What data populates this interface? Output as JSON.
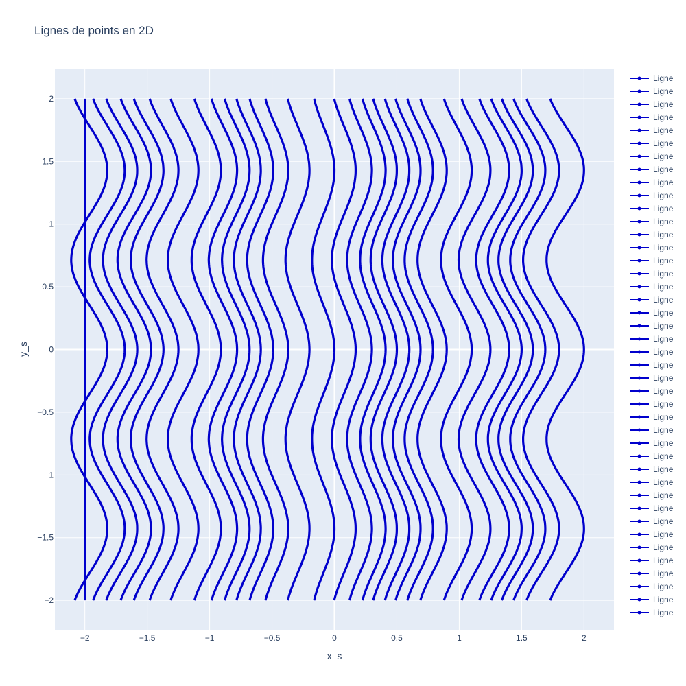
{
  "chart_data": {
    "type": "line",
    "title": "Lignes de points en 2D",
    "xlabel": "x_s",
    "ylabel": "y_s",
    "xlim": [
      -2.24,
      2.24
    ],
    "ylim": [
      -2.24,
      2.24
    ],
    "x_ticks": [
      -2,
      -1.5,
      -1,
      -0.5,
      0,
      0.5,
      1,
      1.5,
      2
    ],
    "x_tick_labels": [
      "−2",
      "−1.5",
      "−1",
      "−0.5",
      "0",
      "0.5",
      "1",
      "1.5",
      "2"
    ],
    "y_ticks": [
      -2,
      -1.5,
      -1,
      -0.5,
      0,
      0.5,
      1,
      1.5,
      2
    ],
    "y_tick_labels": [
      "−2",
      "−1.5",
      "−1",
      "−0.5",
      "0",
      "0.5",
      "1",
      "1.5",
      "2"
    ],
    "grid": true,
    "legend_position": "right",
    "line_color": "#0000cc",
    "plot_background": "#e5ecf6",
    "series_name": "Ligne",
    "series_count": 42,
    "x_tops": [
      -2,
      -1.82,
      -1.68,
      -1.58,
      -1.47,
      -1.37,
      -1.25,
      -1.09,
      -0.91,
      -0.78,
      -0.68,
      -0.59,
      -0.49,
      -0.37,
      -0.2,
      0,
      0.17,
      0.3,
      0.41,
      0.5,
      0.6,
      0.69,
      0.79,
      0.9,
      1.1,
      1.25,
      1.4,
      1.5,
      1.59,
      1.69,
      1.8,
      2
    ],
    "y_range": [
      -2,
      2
    ]
  }
}
